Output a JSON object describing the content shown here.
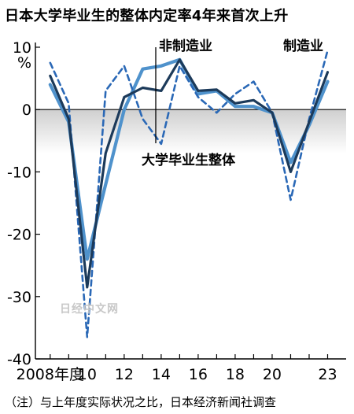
{
  "title": "日本大学毕业生的整体内定率4年来首次上升",
  "note": "（注）与上年度实际状况之比，日本经济新闻社调查",
  "watermark": "日经中文网",
  "unit_label": "%",
  "colors": {
    "overall": "#1c3a5a",
    "non_manufacturing": "#4f92cc",
    "manufacturing": "#2a68b6",
    "negative_area": "#dcdcdc",
    "axis": "#000000"
  },
  "chart_data": {
    "type": "line",
    "title": "日本大学毕业生的整体内定率4年来首次上升",
    "xlabel": "",
    "ylabel": "%",
    "ylim": [
      -40,
      10
    ],
    "xlim": [
      2007.2,
      2024
    ],
    "yticks": [
      10,
      0,
      -10,
      -20,
      -30,
      -40
    ],
    "ytick_labels": [
      "10",
      "0",
      "-10",
      "-20",
      "-30",
      "-40"
    ],
    "xticks": [
      2008,
      2010,
      2012,
      2014,
      2016,
      2018,
      2020,
      2023
    ],
    "xtick_labels": [
      "2008年度",
      "10",
      "12",
      "14",
      "16",
      "18",
      "20",
      "23"
    ],
    "x": [
      2008,
      2009,
      2010,
      2011,
      2012,
      2013,
      2014,
      2015,
      2016,
      2017,
      2018,
      2019,
      2020,
      2021,
      2022,
      2023
    ],
    "series": [
      {
        "name": "大学毕业生整体",
        "style": "solid-dark",
        "values": [
          5.4,
          -1.5,
          -28.5,
          -7,
          2,
          3.5,
          3,
          8,
          3,
          3.2,
          1,
          1.5,
          -0.5,
          -10,
          -2,
          6
        ]
      },
      {
        "name": "非制造业",
        "style": "solid-light",
        "values": [
          4,
          -2,
          -24,
          -12,
          0,
          6.5,
          7,
          8,
          2.5,
          3,
          0.5,
          0.5,
          -0.5,
          -8.5,
          -2.5,
          4.5
        ]
      },
      {
        "name": "制造业",
        "style": "dashed",
        "values": [
          7.5,
          1,
          -36.5,
          3,
          7,
          -1.5,
          -5.5,
          7,
          2,
          -0.5,
          2.5,
          4.5,
          -0.5,
          -14.5,
          -1.5,
          9.5
        ]
      }
    ],
    "grid": false,
    "negative_shading": true,
    "legend": "inline labels"
  }
}
